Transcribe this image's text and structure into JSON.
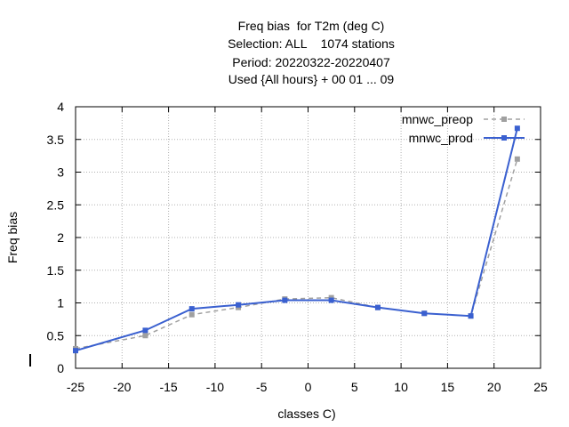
{
  "chart_data": {
    "type": "line",
    "title_lines": [
      "Freq bias  for T2m (deg C)",
      "Selection: ALL    1074 stations",
      "Period: 20220322-20220407",
      "Used {All hours} + 00 01 ... 09"
    ],
    "xlabel": "classes C)",
    "ylabel": "Freq bias",
    "xlim": [
      -25,
      25
    ],
    "ylim": [
      0,
      4
    ],
    "xticks": [
      "-25",
      "-20",
      "-15",
      "-10",
      "-5",
      "0",
      "5",
      "10",
      "15",
      "20",
      "25"
    ],
    "yticks": [
      "0",
      "0.5",
      "1",
      "1.5",
      "2",
      "2.5",
      "3",
      "3.5",
      "4"
    ],
    "grid": true,
    "legend_position": "top-right",
    "x": [
      -25,
      -17.5,
      -12.5,
      -7.5,
      -2.5,
      2.5,
      7.5,
      12.5,
      17.5,
      22.5
    ],
    "series": [
      {
        "name": "mnwc_preop",
        "color": "#a0a0a0",
        "style": "dashed",
        "values": [
          0.3,
          0.5,
          0.82,
          0.93,
          1.06,
          1.08,
          0.93,
          0.84,
          0.8,
          3.2
        ]
      },
      {
        "name": "mnwc_prod",
        "color": "#3a60d0",
        "style": "solid",
        "values": [
          0.27,
          0.58,
          0.91,
          0.97,
          1.04,
          1.04,
          0.93,
          0.84,
          0.8,
          3.67
        ]
      }
    ]
  }
}
